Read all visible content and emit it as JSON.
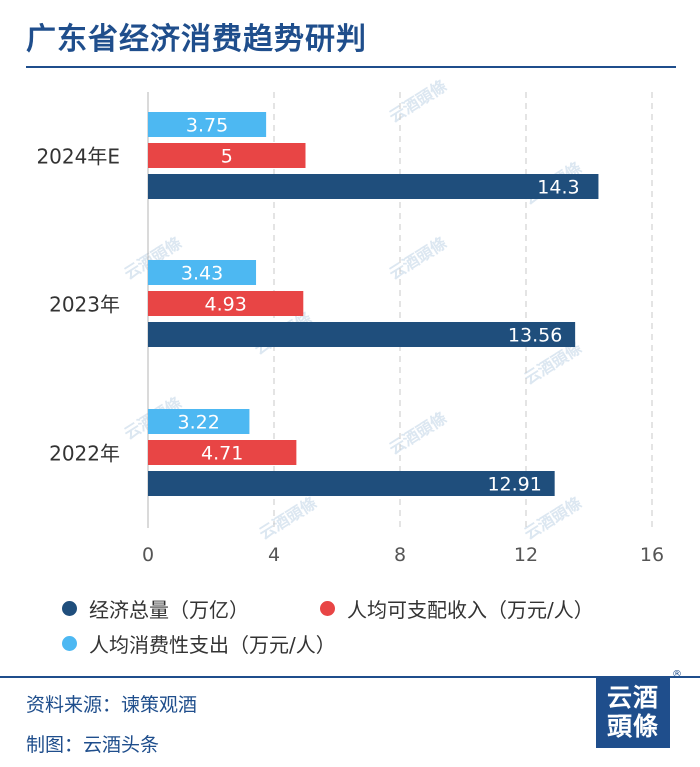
{
  "title": "广东省经济消费趋势研判",
  "chart_data": {
    "type": "bar",
    "orientation": "horizontal",
    "title": "广东省经济消费趋势研判",
    "categories": [
      "2024年E",
      "2023年",
      "2022年"
    ],
    "series": [
      {
        "name": "人均消费性支出（万元/人）",
        "color": "#4db8f2",
        "values": [
          3.75,
          3.43,
          3.22
        ]
      },
      {
        "name": "人均可支配收入（万元/人）",
        "color": "#e84545",
        "values": [
          5,
          4.93,
          4.71
        ]
      },
      {
        "name": "经济总量（万亿）",
        "color": "#1f4e7c",
        "values": [
          14.3,
          13.56,
          12.91
        ]
      }
    ],
    "value_labels": [
      [
        "3.75",
        "5",
        "14.3"
      ],
      [
        "3.43",
        "4.93",
        "13.56"
      ],
      [
        "3.22",
        "4.71",
        "12.91"
      ]
    ],
    "xlim": [
      0,
      16
    ],
    "xticks": [
      0,
      4,
      8,
      12,
      16
    ],
    "xtick_labels": [
      "0",
      "4",
      "8",
      "12",
      "16"
    ],
    "grid": true
  },
  "legend": [
    {
      "label": "经济总量（万亿）",
      "color": "#1f4e7c"
    },
    {
      "label": "人均可支配收入（万元/人）",
      "color": "#e84545"
    },
    {
      "label": "人均消费性支出（万元/人）",
      "color": "#4db8f2"
    }
  ],
  "footer": {
    "source": "资料来源：谏策观酒",
    "credit": "制图：云酒头条"
  },
  "logo": {
    "line1": "云酒",
    "line2": "頭條",
    "reg": "®"
  },
  "watermark": "云酒頭條"
}
